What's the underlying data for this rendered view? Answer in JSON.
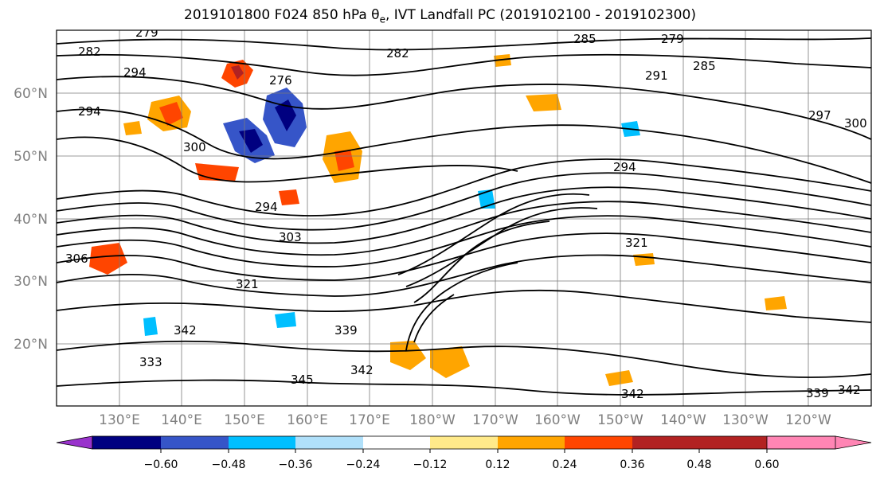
{
  "title": {
    "prefix": "2019101800 F024 850 hPa θ",
    "sub": "e",
    "suffix": ", IVT Landfall PC (2019102100 - 2019102300)"
  },
  "map": {
    "lat_labels": [
      "60°N",
      "50°N",
      "40°N",
      "30°N",
      "20°N"
    ],
    "lon_labels": [
      "130°E",
      "140°E",
      "150°E",
      "160°E",
      "170°E",
      "180°W",
      "170°W",
      "160°W",
      "150°W",
      "140°W",
      "130°W",
      "120°W"
    ],
    "contour_labels": [
      "279",
      "282",
      "285",
      "276",
      "294",
      "285",
      "279",
      "282",
      "291",
      "294",
      "297",
      "300",
      "300",
      "294",
      "303",
      "294",
      "321",
      "306",
      "321",
      "342",
      "345",
      "339",
      "342",
      "339",
      "342",
      "333",
      "342"
    ]
  },
  "colorbar": {
    "colors": [
      "#9932cc",
      "#000080",
      "#3655c8",
      "#00bfff",
      "#b0e0fa",
      "#ffffff",
      "#ffea8a",
      "#ffa500",
      "#ff4500",
      "#b22222",
      "#ff85b4"
    ],
    "tick_labels": [
      "−0.60",
      "−0.48",
      "−0.36",
      "−0.24",
      "−0.12",
      "0.12",
      "0.24",
      "0.36",
      "0.48",
      "0.60"
    ]
  }
}
